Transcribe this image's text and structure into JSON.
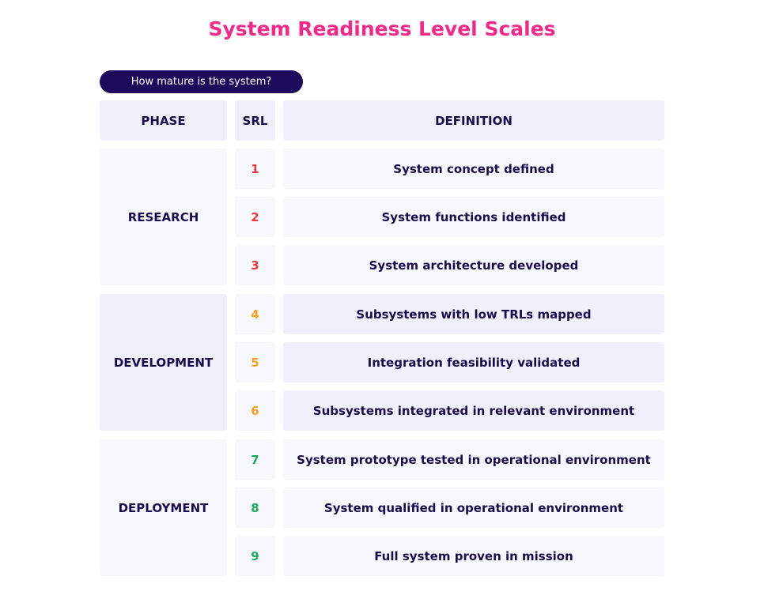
{
  "title": "System Readiness Level Scales",
  "subtitle": "How mature is the system?",
  "headers": {
    "phase": "PHASE",
    "srl": "SRL",
    "definition": "DEFINITION"
  },
  "colors": {
    "research": "#e8383b",
    "development": "#f3a226",
    "deployment": "#1aaa5c",
    "title": "#ee2b8b",
    "pill": "#1d0a5a"
  },
  "phases": [
    {
      "name": "RESEARCH",
      "rows": [
        {
          "srl": "1",
          "definition": "System concept defined"
        },
        {
          "srl": "2",
          "definition": "System functions identified"
        },
        {
          "srl": "3",
          "definition": "System architecture developed"
        }
      ]
    },
    {
      "name": "DEVELOPMENT",
      "rows": [
        {
          "srl": "4",
          "definition": "Subsystems with low TRLs mapped"
        },
        {
          "srl": "5",
          "definition": "Integration feasibility validated"
        },
        {
          "srl": "6",
          "definition": "Subsystems integrated in relevant environment"
        }
      ]
    },
    {
      "name": "DEPLOYMENT",
      "rows": [
        {
          "srl": "7",
          "definition": "System prototype tested in operational environment"
        },
        {
          "srl": "8",
          "definition": "System qualified in operational environment"
        },
        {
          "srl": "9",
          "definition": "Full system proven in mission"
        }
      ]
    }
  ]
}
